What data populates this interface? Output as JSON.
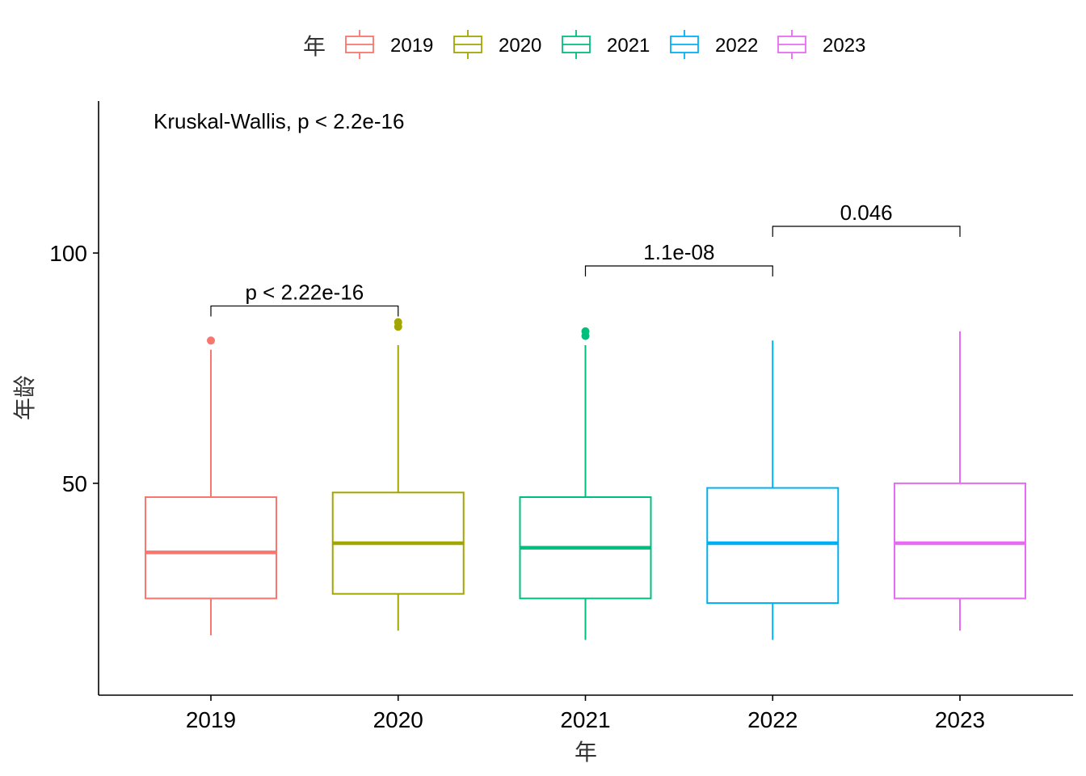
{
  "chart_data": {
    "type": "boxplot",
    "xlabel": "年",
    "ylabel": "年龄",
    "ylim": [
      4,
      133
    ],
    "y_ticks": [
      50,
      100
    ],
    "legend": {
      "title": "年",
      "position": "top"
    },
    "annotation": "Kruskal-Wallis, p < 2.2e-16",
    "categories": [
      "2019",
      "2020",
      "2021",
      "2022",
      "2023"
    ],
    "colors": [
      "#F8766D",
      "#A3A500",
      "#00BF7D",
      "#00B0F6",
      "#E76BF3"
    ],
    "boxes": [
      {
        "category": "2019",
        "whisker_low": 17,
        "q1": 25,
        "median": 35,
        "q3": 47,
        "whisker_high": 79,
        "outliers": [
          81
        ]
      },
      {
        "category": "2020",
        "whisker_low": 18,
        "q1": 26,
        "median": 37,
        "q3": 48,
        "whisker_high": 80,
        "outliers": [
          84,
          85
        ]
      },
      {
        "category": "2021",
        "whisker_low": 16,
        "q1": 25,
        "median": 36,
        "q3": 47,
        "whisker_high": 80,
        "outliers": [
          82,
          83
        ]
      },
      {
        "category": "2022",
        "whisker_low": 16,
        "q1": 24,
        "median": 37,
        "q3": 49,
        "whisker_high": 81,
        "outliers": []
      },
      {
        "category": "2023",
        "whisker_low": 18,
        "q1": 25,
        "median": 37,
        "q3": 50,
        "whisker_high": 83,
        "outliers": []
      }
    ],
    "comparisons": [
      {
        "from": "2019",
        "to": "2020",
        "y": 88.5,
        "label": "p < 2.22e-16"
      },
      {
        "from": "2021",
        "to": "2022",
        "y": 97.2,
        "label": "1.1e-08"
      },
      {
        "from": "2022",
        "to": "2023",
        "y": 105.8,
        "label": "0.046"
      }
    ]
  }
}
